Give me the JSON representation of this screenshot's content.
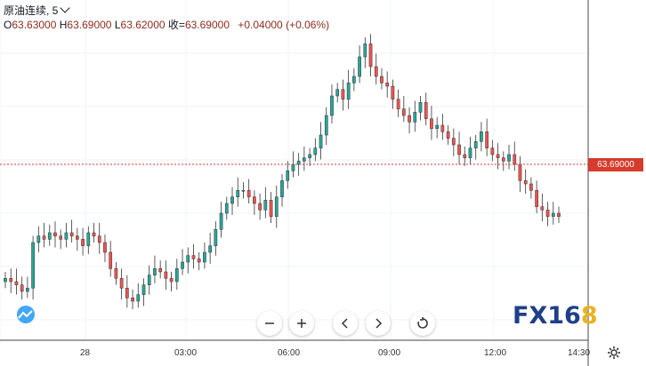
{
  "legend": {
    "symbol": "原油连续, 5",
    "open_label": "O",
    "open": "63.63000",
    "high_label": "H",
    "high": "63.69000",
    "low_label": "L",
    "low": "63.62000",
    "close_label": "收=",
    "close": "63.69000",
    "change": "+0.04000 (+0.06%)"
  },
  "price_tag": "63.69000",
  "toolbar": [
    "zoom-out",
    "zoom-in",
    "scroll-left",
    "scroll-right",
    "reset"
  ],
  "watermark": {
    "fx": "FX",
    "num": "16",
    "eight": "8"
  },
  "time_axis": [
    "28",
    "03:00",
    "06:00",
    "09:00",
    "12:00",
    "14:30"
  ],
  "colors": {
    "up": "#26a69a",
    "down": "#ef5350",
    "price_line": "#d63b2c",
    "brand": "#1f3f88",
    "brand_accent": "#e8b423"
  },
  "chart_data": {
    "type": "candlestick",
    "interval_minutes": 5,
    "closes": [
      63.5,
      63.49,
      63.48,
      63.46,
      63.47,
      63.61,
      63.63,
      63.62,
      63.64,
      63.63,
      63.62,
      63.64,
      63.63,
      63.62,
      63.6,
      63.64,
      63.63,
      63.61,
      63.58,
      63.53,
      63.5,
      63.47,
      63.44,
      63.43,
      63.45,
      63.48,
      63.51,
      63.53,
      63.52,
      63.5,
      63.49,
      63.53,
      63.55,
      63.57,
      63.56,
      63.55,
      63.58,
      63.6,
      63.65,
      63.7,
      63.73,
      63.75,
      63.77,
      63.77,
      63.75,
      63.73,
      63.71,
      63.74,
      63.69,
      63.75,
      63.8,
      63.83,
      63.85,
      63.86,
      63.87,
      63.88,
      63.9,
      63.94,
      64.0,
      64.06,
      64.08,
      64.05,
      64.1,
      64.12,
      64.18,
      64.22,
      64.15,
      64.12,
      64.1,
      64.09,
      64.05,
      64.02,
      64.0,
      63.98,
      64.01,
      64.04,
      63.99,
      63.96,
      63.97,
      63.95,
      63.93,
      63.91,
      63.88,
      63.87,
      63.9,
      63.92,
      63.95,
      63.9,
      63.88,
      63.87,
      63.86,
      63.88,
      63.85,
      63.8,
      63.79,
      63.77,
      63.72,
      63.71,
      63.69,
      63.7,
      63.69
    ]
  }
}
